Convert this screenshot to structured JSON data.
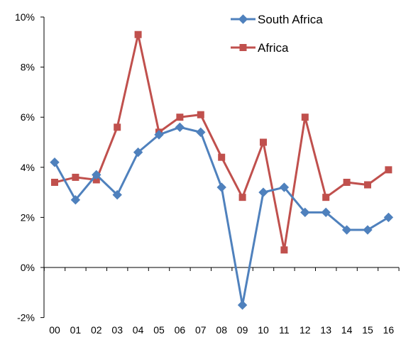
{
  "chart_data": {
    "type": "line",
    "title": "",
    "xlabel": "",
    "ylabel": "",
    "categories": [
      "00",
      "01",
      "02",
      "03",
      "04",
      "05",
      "06",
      "07",
      "08",
      "09",
      "10",
      "11",
      "12",
      "13",
      "14",
      "15",
      "16"
    ],
    "ylim": [
      -2,
      10
    ],
    "y_ticks": [
      {
        "value": -2,
        "label": "-2%"
      },
      {
        "value": 0,
        "label": "0%"
      },
      {
        "value": 2,
        "label": "2%"
      },
      {
        "value": 4,
        "label": "4%"
      },
      {
        "value": 6,
        "label": "6%"
      },
      {
        "value": 8,
        "label": "8%"
      },
      {
        "value": 10,
        "label": "10%"
      }
    ],
    "grid": false,
    "legend_position": "top-right",
    "series": [
      {
        "name": "South Africa",
        "color": "#4F81BD",
        "marker": "diamond",
        "values": [
          4.2,
          2.7,
          3.7,
          2.9,
          4.6,
          5.3,
          5.6,
          5.4,
          3.2,
          -1.5,
          3.0,
          3.2,
          2.2,
          2.2,
          1.5,
          1.5,
          2.0
        ]
      },
      {
        "name": "Africa",
        "color": "#C0504D",
        "marker": "square",
        "values": [
          3.4,
          3.6,
          3.5,
          5.6,
          9.3,
          5.4,
          6.0,
          6.1,
          4.4,
          2.8,
          5.0,
          0.7,
          6.0,
          2.8,
          3.4,
          3.3,
          3.9
        ]
      }
    ]
  }
}
